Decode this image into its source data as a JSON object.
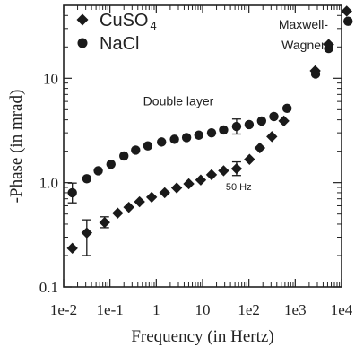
{
  "chart_data": {
    "type": "scatter",
    "xlabel": "Frequency (in Hertz)",
    "ylabel": "-Phase (in mrad)",
    "x_scale": "log",
    "y_scale": "log",
    "xlim": [
      0.01,
      10000
    ],
    "ylim": [
      0.1,
      50
    ],
    "x_ticks": [
      0.01,
      0.1,
      1,
      10,
      100,
      1000,
      10000
    ],
    "x_tick_labels": [
      "1e-2",
      "1e-1",
      "1",
      "10",
      "1e2",
      "1e3",
      "1e4"
    ],
    "y_ticks": [
      0.1,
      1,
      10
    ],
    "y_tick_labels": [
      "0.1",
      "1.0",
      "10"
    ],
    "grid": false,
    "legend": {
      "position": "top-left",
      "entries": [
        {
          "label": "CuSO",
          "subscript": "4",
          "marker": "diamond"
        },
        {
          "label": "NaCl",
          "subscript": "",
          "marker": "circle"
        }
      ]
    },
    "annotations": [
      {
        "text": "Double layer",
        "x": 3,
        "y": 5.5,
        "size": 14
      },
      {
        "text": "50 Hz",
        "x": 60,
        "y": 0.85,
        "size": 11
      },
      {
        "text": "Maxwell-",
        "x": 1500,
        "y": 30,
        "size": 14
      },
      {
        "text": "Wagner",
        "x": 1500,
        "y": 19,
        "size": 14
      }
    ],
    "series": [
      {
        "name": "CuSO4",
        "marker": "diamond",
        "x": [
          0.0154,
          0.0316,
          0.0768,
          0.147,
          0.255,
          0.435,
          0.794,
          1.52,
          2.76,
          5.03,
          9.12,
          15.6,
          28.4,
          54.2,
          103,
          172,
          313,
          568,
          2700,
          5270,
          12900
        ],
        "y": [
          0.235,
          0.33,
          0.415,
          0.51,
          0.58,
          0.655,
          0.725,
          0.8,
          0.89,
          0.975,
          1.06,
          1.19,
          1.3,
          1.36,
          1.67,
          2.15,
          2.76,
          3.9,
          11.8,
          21.1,
          44.0
        ],
        "errors": [
          {
            "x": 0.0316,
            "low": 0.2,
            "high": 0.44
          },
          {
            "x": 0.0768,
            "low": 0.37,
            "high": 0.47
          },
          {
            "x": 54.2,
            "low": 1.17,
            "high": 1.58
          }
        ]
      },
      {
        "name": "NaCl",
        "marker": "circle",
        "x": [
          0.0154,
          0.0316,
          0.0558,
          0.105,
          0.2,
          0.358,
          0.656,
          1.3,
          2.47,
          4.51,
          8.28,
          15.6,
          28.4,
          54.2,
          101,
          188,
          346,
          665,
          2750,
          5270,
          13800
        ],
        "y": [
          0.8,
          1.09,
          1.3,
          1.5,
          1.8,
          2.05,
          2.25,
          2.45,
          2.6,
          2.7,
          2.85,
          3.0,
          3.2,
          3.45,
          3.6,
          3.9,
          4.3,
          5.15,
          11.0,
          19.3,
          35.2
        ],
        "errors": [
          {
            "x": 0.0154,
            "low": 0.64,
            "high": 0.99
          },
          {
            "x": 54.2,
            "low": 2.92,
            "high": 4.07
          }
        ]
      }
    ]
  }
}
